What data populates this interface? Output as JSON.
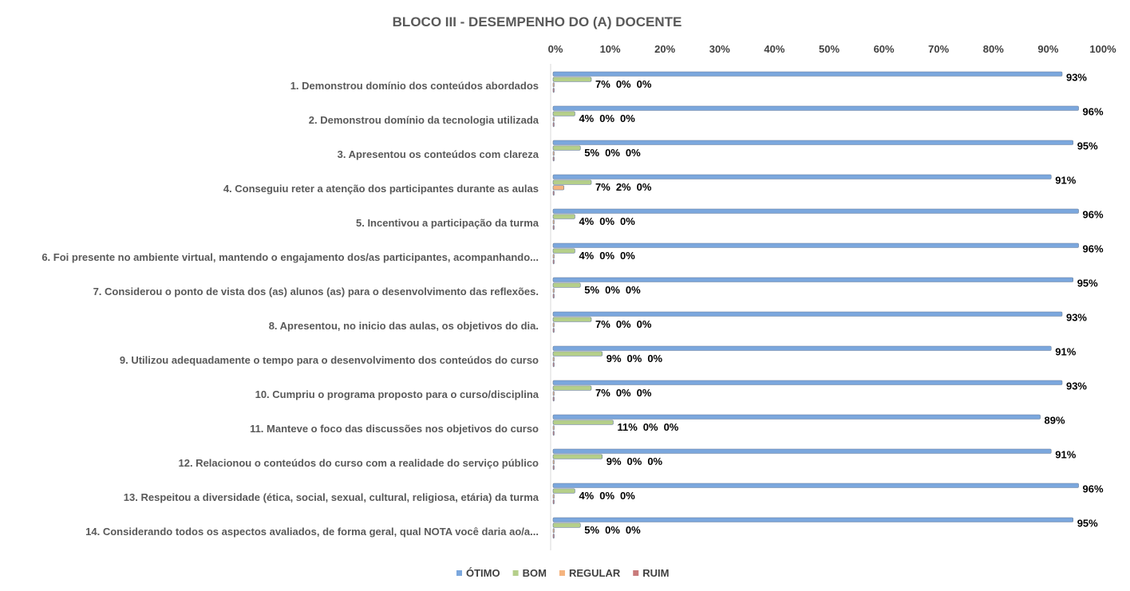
{
  "chart_data": {
    "type": "bar",
    "orientation": "horizontal",
    "title": "BLOCO III - DESEMPENHO DO (A) DOCENTE",
    "xlabel": "",
    "ylabel": "",
    "xlim": [
      0,
      100
    ],
    "x_ticks": [
      "0%",
      "10%",
      "20%",
      "30%",
      "40%",
      "50%",
      "60%",
      "70%",
      "80%",
      "90%",
      "100%"
    ],
    "x_axis_position": "top",
    "grid": false,
    "legend_position": "bottom",
    "categories": [
      "1. Demonstrou domínio dos conteúdos abordados",
      "2. Demonstrou domínio da tecnologia utilizada",
      "3. Apresentou os conteúdos com clareza",
      "4. Conseguiu reter a atenção dos participantes durante as aulas",
      "5. Incentivou a participação da turma",
      "6. Foi presente no ambiente virtual, mantendo o engajamento dos/as participantes, acompanhando...",
      "7. Considerou o ponto de vista dos (as) alunos (as) para o desenvolvimento das reflexões.",
      "8. Apresentou, no inicio das aulas, os objetivos do dia.",
      "9. Utilizou adequadamente o tempo para o desenvolvimento dos conteúdos do curso",
      "10. Cumpriu o programa proposto para o curso/disciplina",
      "11. Manteve o foco das discussões nos objetivos do curso",
      "12. Relacionou o conteúdos do curso com a realidade do serviço público",
      "13. Respeitou a diversidade (ética, social, sexual, cultural, religiosa, etária) da turma",
      "14. Considerando todos os aspectos avaliados, de forma geral, qual NOTA você daria ao/a..."
    ],
    "series": [
      {
        "name": "ÓTIMO",
        "color": "#7ba7dd",
        "values": [
          93,
          96,
          95,
          91,
          96,
          96,
          95,
          93,
          91,
          93,
          89,
          91,
          96,
          95
        ]
      },
      {
        "name": "BOM",
        "color": "#b5cf8a",
        "values": [
          7,
          4,
          5,
          7,
          4,
          4,
          5,
          7,
          9,
          7,
          11,
          9,
          4,
          5
        ]
      },
      {
        "name": "REGULAR",
        "color": "#f5b47f",
        "values": [
          0,
          0,
          0,
          2,
          0,
          0,
          0,
          0,
          0,
          0,
          0,
          0,
          0,
          0
        ]
      },
      {
        "name": "RUIM",
        "color": "#c97b7b",
        "values": [
          0,
          0,
          0,
          0,
          0,
          0,
          0,
          0,
          0,
          0,
          0,
          0,
          0,
          0
        ]
      }
    ],
    "value_suffix": "%"
  }
}
